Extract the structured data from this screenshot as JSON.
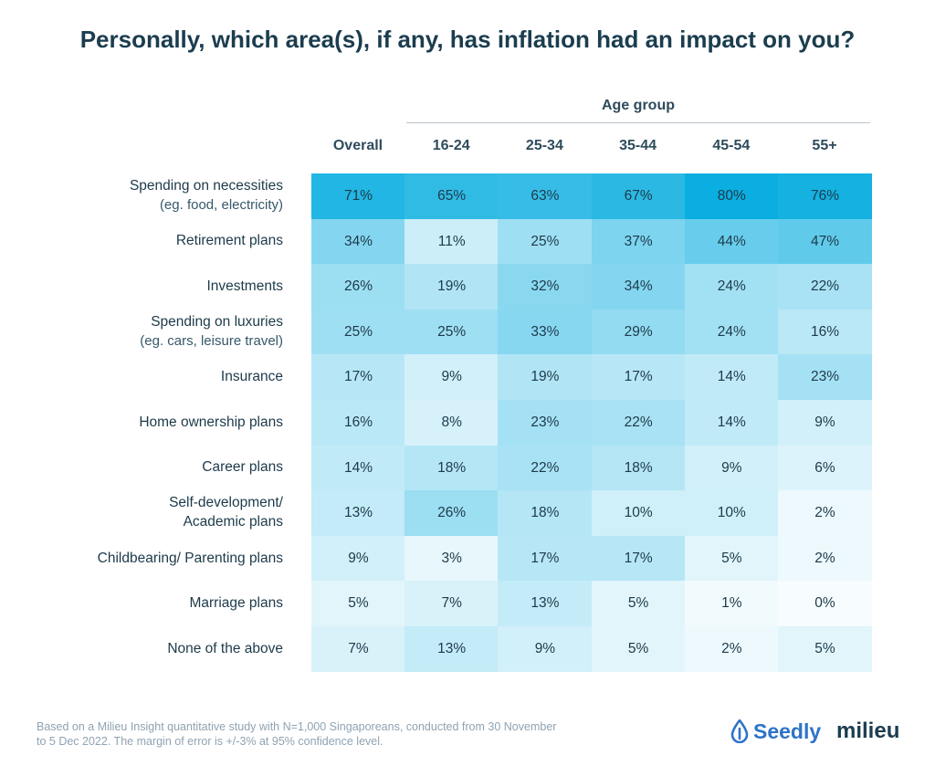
{
  "chart_data": {
    "type": "heatmap",
    "title": "Personally, which area(s), if any, has inflation had an impact on you?",
    "group_label": "Age group",
    "columns": [
      "Overall",
      "16-24",
      "25-34",
      "35-44",
      "45-54",
      "55+"
    ],
    "rows": [
      {
        "label": "Spending on necessities",
        "sublabel": "(eg. food, electricity)",
        "values": [
          71,
          65,
          63,
          67,
          80,
          76
        ],
        "display": [
          "71%",
          "65%",
          "63%",
          "67%",
          "80%",
          "76%"
        ]
      },
      {
        "label": "Retirement plans",
        "sublabel": "",
        "values": [
          34,
          11,
          25,
          37,
          44,
          47
        ],
        "display": [
          "34%",
          "11%",
          "25%",
          "37%",
          "44%",
          "47%"
        ]
      },
      {
        "label": "Investments",
        "sublabel": "",
        "values": [
          26,
          19,
          32,
          34,
          24,
          22
        ],
        "display": [
          "26%",
          "19%",
          "32%",
          "34%",
          "24%",
          "22%"
        ]
      },
      {
        "label": "Spending on luxuries",
        "sublabel": "(eg. cars, leisure travel)",
        "values": [
          25,
          25,
          33,
          29,
          24,
          16
        ],
        "display": [
          "25%",
          "25%",
          "33%",
          "29%",
          "24%",
          "16%"
        ]
      },
      {
        "label": "Insurance",
        "sublabel": "",
        "values": [
          17,
          9,
          19,
          17,
          14,
          23
        ],
        "display": [
          "17%",
          "9%",
          "19%",
          "17%",
          "14%",
          "23%"
        ]
      },
      {
        "label": "Home ownership plans",
        "sublabel": "",
        "values": [
          16,
          8,
          23,
          22,
          14,
          9
        ],
        "display": [
          "16%",
          "8%",
          "23%",
          "22%",
          "14%",
          "9%"
        ]
      },
      {
        "label": "Career plans",
        "sublabel": "",
        "values": [
          14,
          18,
          22,
          18,
          9,
          6
        ],
        "display": [
          "14%",
          "18%",
          "22%",
          "18%",
          "9%",
          "6%"
        ]
      },
      {
        "label": "Self-development/",
        "sublabel": "Academic plans",
        "values": [
          13,
          26,
          18,
          10,
          10,
          2
        ],
        "display": [
          "13%",
          "26%",
          "18%",
          "10%",
          "10%",
          "2%"
        ]
      },
      {
        "label": "Childbearing/ Parenting plans",
        "sublabel": "",
        "values": [
          9,
          3,
          17,
          17,
          5,
          2
        ],
        "display": [
          "9%",
          "3%",
          "17%",
          "17%",
          "5%",
          "2%"
        ]
      },
      {
        "label": "Marriage plans",
        "sublabel": "",
        "values": [
          5,
          7,
          13,
          5,
          1,
          0
        ],
        "display": [
          "5%",
          "7%",
          "13%",
          "5%",
          "1%",
          "0%"
        ]
      },
      {
        "label": "None of the above",
        "sublabel": "",
        "values": [
          7,
          13,
          9,
          5,
          2,
          5
        ],
        "display": [
          "7%",
          "13%",
          "9%",
          "5%",
          "2%",
          "5%"
        ]
      }
    ],
    "color_low": "#f7fcfe",
    "color_high": "#0aaee0"
  },
  "footer": {
    "line1": "Based on a Milieu Insight quantitative study with N=1,000 Singaporeans, conducted from 30 November",
    "line2": "to 5 Dec 2022. The margin of error is +/-3% at 95% confidence level."
  },
  "logos": {
    "seedly": "Seedly",
    "seedly_icon": "seedly-drop-icon",
    "milieu": "milieu"
  }
}
